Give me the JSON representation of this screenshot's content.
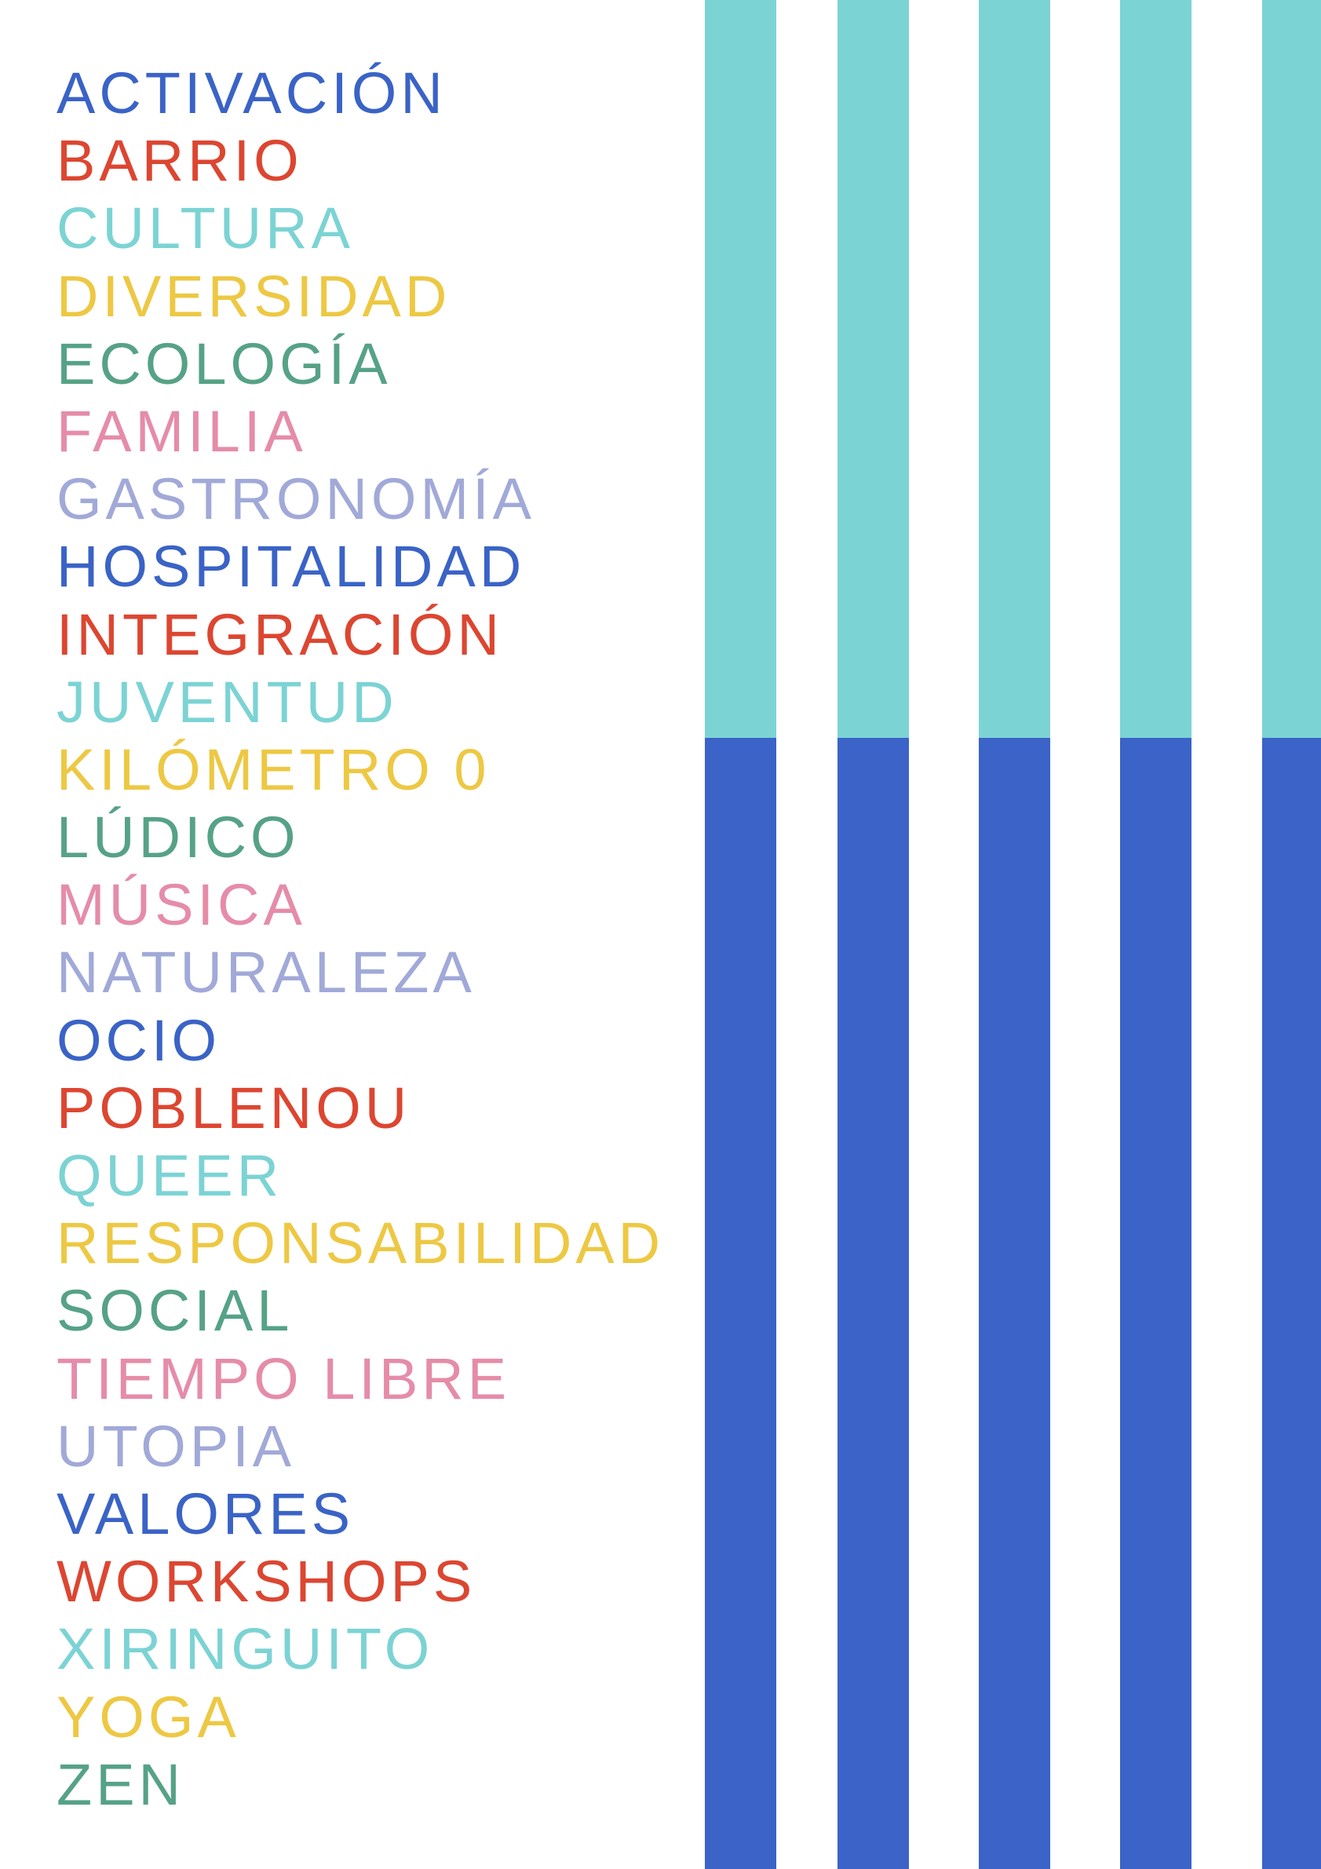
{
  "words": [
    {
      "text": "ACTIVACIÓN",
      "color": "#3a63c6"
    },
    {
      "text": "BARRIO",
      "color": "#dc4631"
    },
    {
      "text": "CULTURA",
      "color": "#7cd3d4"
    },
    {
      "text": "DIVERSIDAD",
      "color": "#edc843"
    },
    {
      "text": "ECOLOGÍA",
      "color": "#56a287"
    },
    {
      "text": "FAMILIA",
      "color": "#e58ca8"
    },
    {
      "text": "GASTRONOMÍA",
      "color": "#a1a9d8"
    },
    {
      "text": "HOSPITALIDAD",
      "color": "#3a63c6"
    },
    {
      "text": "INTEGRACIÓN",
      "color": "#dc4631"
    },
    {
      "text": "JUVENTUD",
      "color": "#7cd3d4"
    },
    {
      "text": "KILÓMETRO 0",
      "color": "#edc843"
    },
    {
      "text": "LÚDICO",
      "color": "#56a287"
    },
    {
      "text": "MÚSICA",
      "color": "#e58ca8"
    },
    {
      "text": "NATURALEZA",
      "color": "#a1a9d8"
    },
    {
      "text": "OCIO",
      "color": "#3a63c6"
    },
    {
      "text": "POBLENOU",
      "color": "#dc4631"
    },
    {
      "text": "QUEER",
      "color": "#7cd3d4"
    },
    {
      "text": "RESPONSABILIDAD",
      "color": "#edc843"
    },
    {
      "text": "SOCIAL",
      "color": "#56a287"
    },
    {
      "text": "TIEMPO LIBRE",
      "color": "#e58ca8"
    },
    {
      "text": "UTOPIA",
      "color": "#a1a9d8"
    },
    {
      "text": "VALORES",
      "color": "#3a63c6"
    },
    {
      "text": "WORKSHOPS",
      "color": "#dc4631"
    },
    {
      "text": "XIRINGUITO",
      "color": "#7cd3d4"
    },
    {
      "text": "YOGA",
      "color": "#edc843"
    },
    {
      "text": "ZEN",
      "color": "#56a287"
    }
  ],
  "stripes": {
    "count": 5,
    "top_color": "#7cd3d4",
    "bottom_color": "#3b63c8"
  }
}
